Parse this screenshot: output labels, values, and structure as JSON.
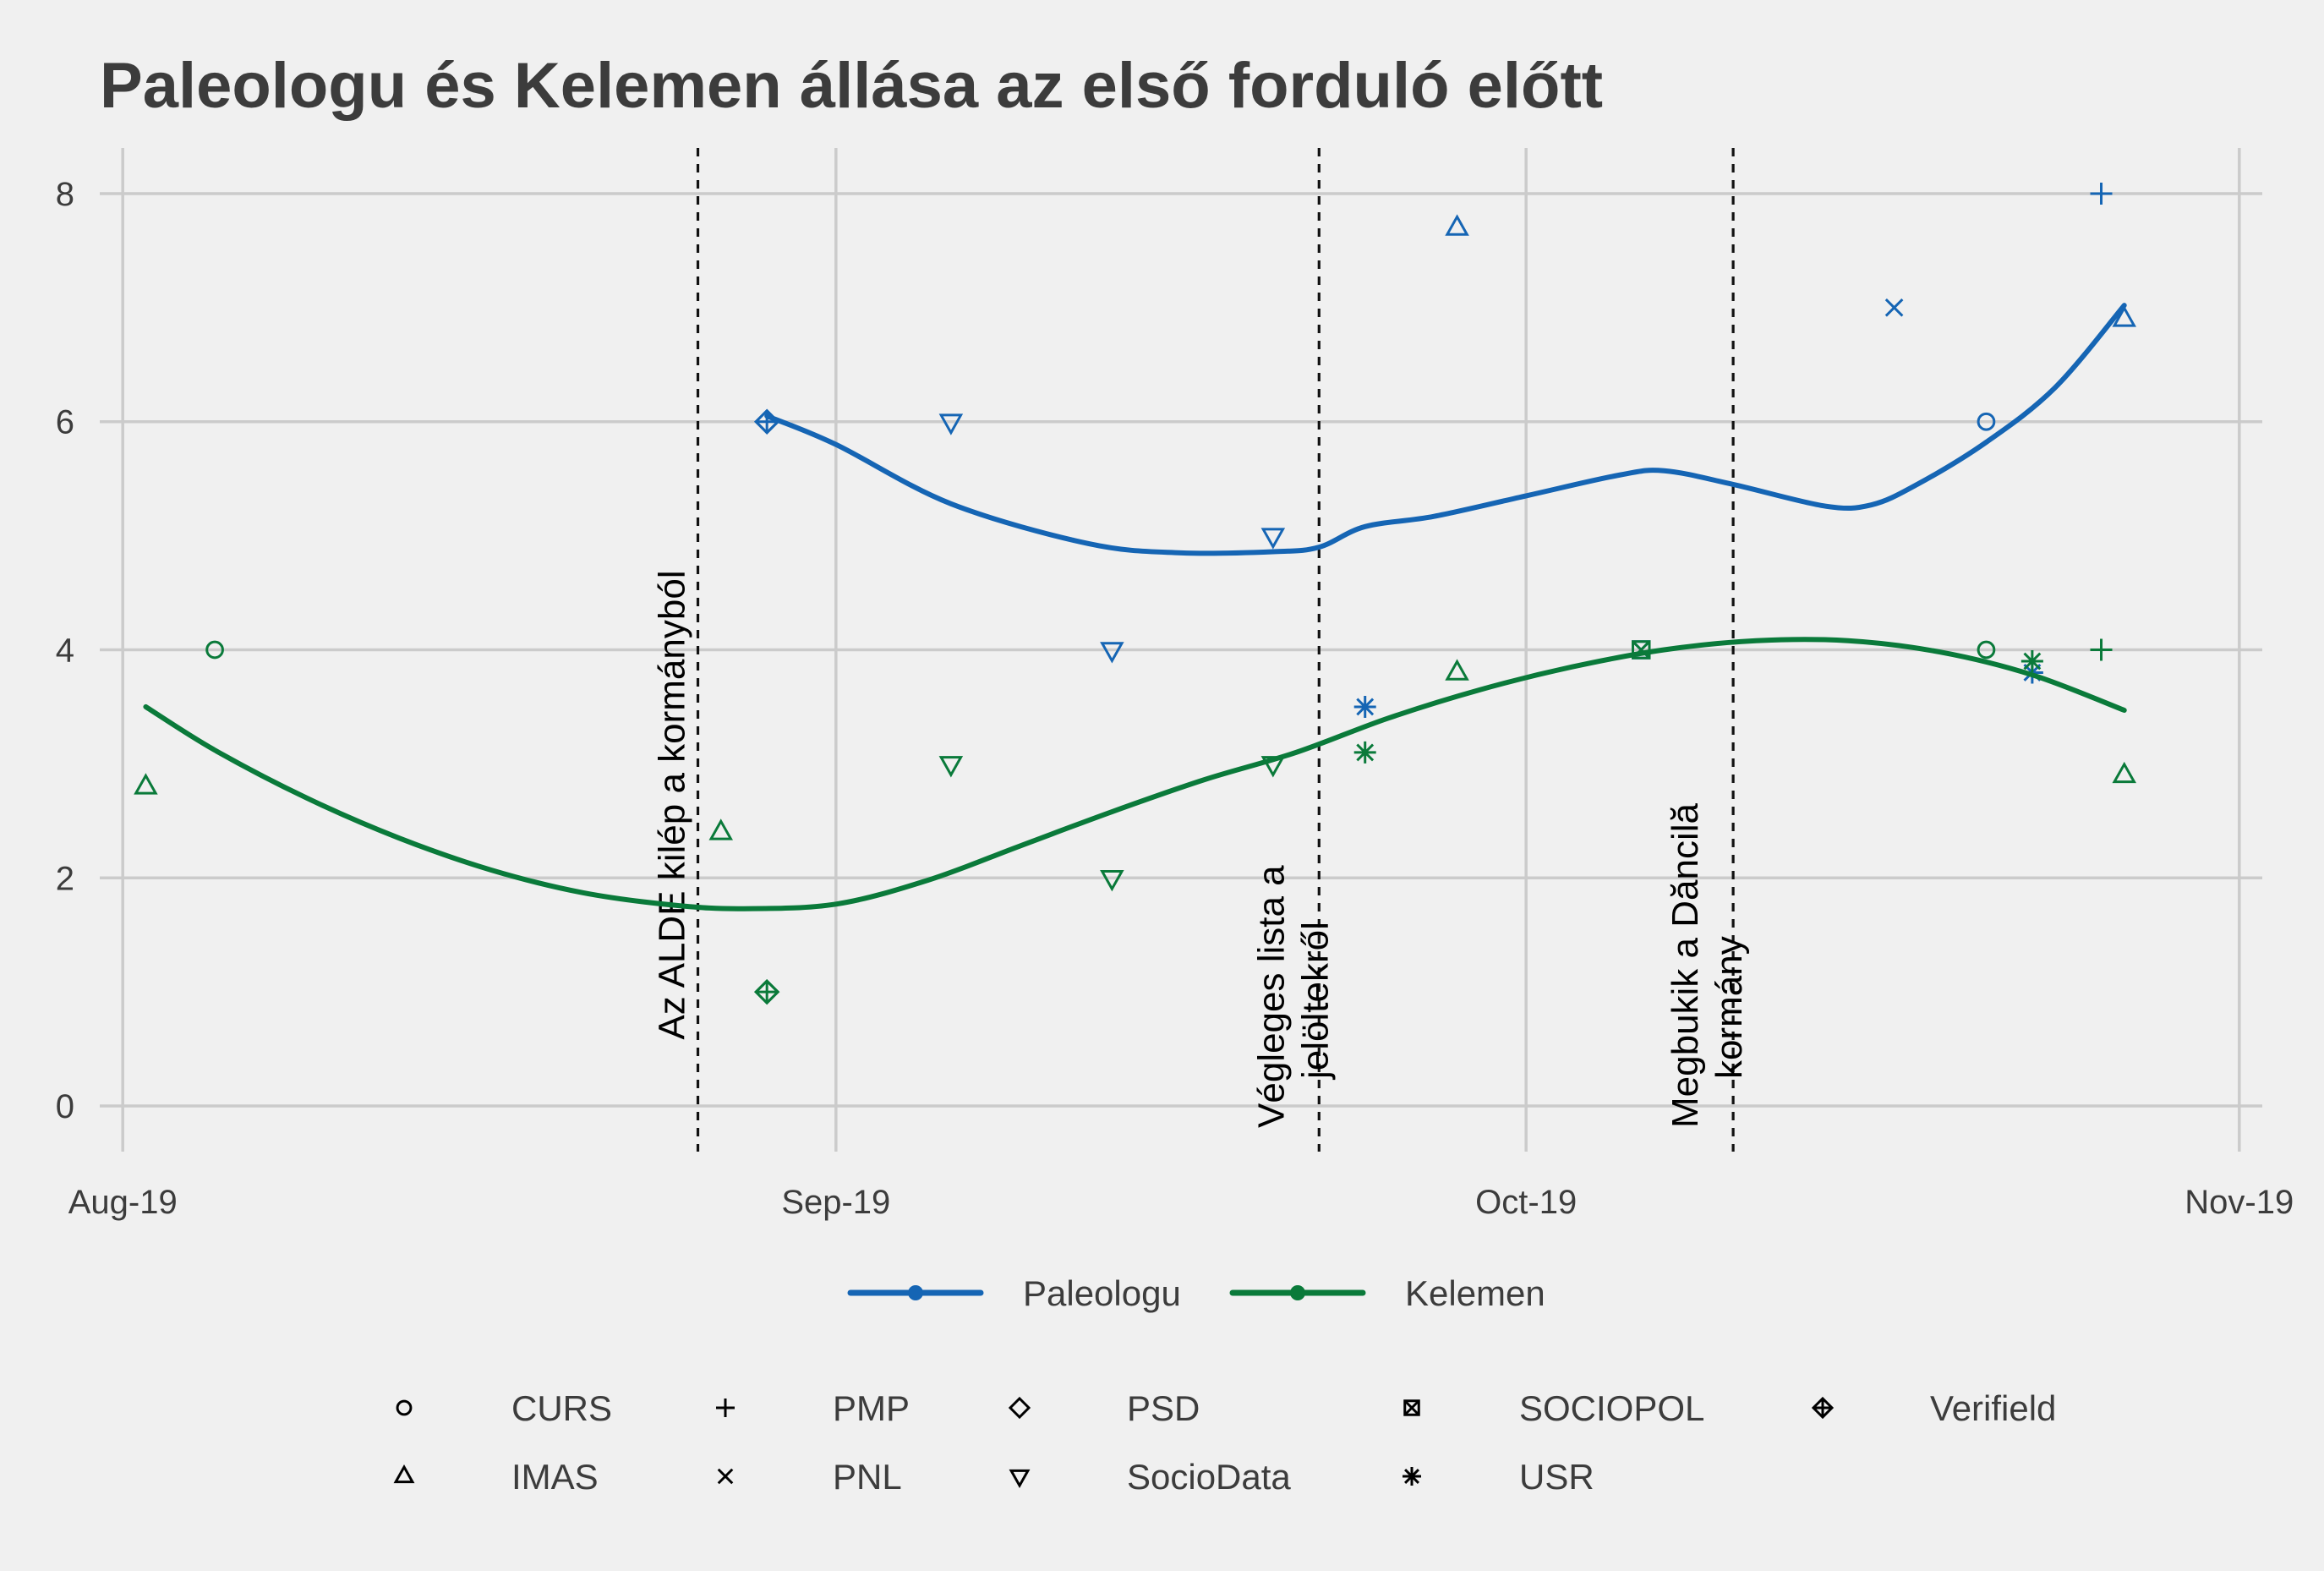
{
  "chart_data": {
    "type": "line",
    "title": "Paleologu és Kelemen állása az első forduló előtt",
    "xlabel": "",
    "ylabel": "",
    "x_axis": {
      "type": "date",
      "range": [
        "2019-07-31",
        "2019-11-02"
      ],
      "ticks": [
        {
          "date": "2019-08-01",
          "label": "Aug-19"
        },
        {
          "date": "2019-09-01",
          "label": "Sep-19"
        },
        {
          "date": "2019-10-01",
          "label": "Oct-19"
        },
        {
          "date": "2019-11-01",
          "label": "Nov-19"
        }
      ]
    },
    "y_axis": {
      "range": [
        -0.4,
        8.4
      ],
      "ticks": [
        0,
        2,
        4,
        6,
        8
      ]
    },
    "grid": true,
    "series": [
      {
        "name": "Paleologu",
        "color": "#1565b4",
        "smooth_line": [
          [
            "2019-08-29",
            6.05
          ],
          [
            "2019-09-01",
            5.8
          ],
          [
            "2019-09-06",
            5.28
          ],
          [
            "2019-09-12",
            4.93
          ],
          [
            "2019-09-16",
            4.85
          ],
          [
            "2019-09-20",
            4.86
          ],
          [
            "2019-09-22",
            4.9
          ],
          [
            "2019-09-24",
            5.08
          ],
          [
            "2019-09-27",
            5.17
          ],
          [
            "2019-10-01",
            5.35
          ],
          [
            "2019-10-05",
            5.53
          ],
          [
            "2019-10-07",
            5.57
          ],
          [
            "2019-10-10",
            5.45
          ],
          [
            "2019-10-14",
            5.26
          ],
          [
            "2019-10-16",
            5.27
          ],
          [
            "2019-10-18",
            5.45
          ],
          [
            "2019-10-21",
            5.82
          ],
          [
            "2019-10-24",
            6.3
          ],
          [
            "2019-10-27",
            7.02
          ]
        ],
        "polls": [
          {
            "date": "2019-08-29",
            "value": 6.0,
            "pollster": "Verifield"
          },
          {
            "date": "2019-08-29",
            "value": 6.0,
            "pollster": "PSD"
          },
          {
            "date": "2019-09-06",
            "value": 6.0,
            "pollster": "SocioData"
          },
          {
            "date": "2019-09-13",
            "value": 4.0,
            "pollster": "SocioData"
          },
          {
            "date": "2019-09-20",
            "value": 5.0,
            "pollster": "SocioData"
          },
          {
            "date": "2019-09-24",
            "value": 3.5,
            "pollster": "USR"
          },
          {
            "date": "2019-09-28",
            "value": 7.7,
            "pollster": "IMAS"
          },
          {
            "date": "2019-10-06",
            "value": 4.0,
            "pollster": "SOCIOPOL"
          },
          {
            "date": "2019-10-17",
            "value": 7.0,
            "pollster": "PNL"
          },
          {
            "date": "2019-10-21",
            "value": 6.0,
            "pollster": "CURS"
          },
          {
            "date": "2019-10-23",
            "value": 3.8,
            "pollster": "USR"
          },
          {
            "date": "2019-10-26",
            "value": 8.0,
            "pollster": "PMP"
          },
          {
            "date": "2019-10-27",
            "value": 6.9,
            "pollster": "IMAS"
          }
        ]
      },
      {
        "name": "Kelemen",
        "color": "#0a7a3a",
        "smooth_line": [
          [
            "2019-08-02",
            3.5
          ],
          [
            "2019-08-05",
            3.12
          ],
          [
            "2019-08-09",
            2.7
          ],
          [
            "2019-08-13",
            2.35
          ],
          [
            "2019-08-17",
            2.07
          ],
          [
            "2019-08-21",
            1.87
          ],
          [
            "2019-08-25",
            1.76
          ],
          [
            "2019-08-28",
            1.73
          ],
          [
            "2019-09-01",
            1.77
          ],
          [
            "2019-09-05",
            1.98
          ],
          [
            "2019-09-09",
            2.28
          ],
          [
            "2019-09-13",
            2.58
          ],
          [
            "2019-09-17",
            2.86
          ],
          [
            "2019-09-21",
            3.1
          ],
          [
            "2019-09-25",
            3.4
          ],
          [
            "2019-09-29",
            3.65
          ],
          [
            "2019-10-03",
            3.85
          ],
          [
            "2019-10-07",
            4.0
          ],
          [
            "2019-10-11",
            4.08
          ],
          [
            "2019-10-15",
            4.08
          ],
          [
            "2019-10-19",
            3.98
          ],
          [
            "2019-10-23",
            3.78
          ],
          [
            "2019-10-27",
            3.47
          ]
        ],
        "polls": [
          {
            "date": "2019-08-02",
            "value": 2.8,
            "pollster": "IMAS"
          },
          {
            "date": "2019-08-05",
            "value": 4.0,
            "pollster": "CURS"
          },
          {
            "date": "2019-08-27",
            "value": 2.4,
            "pollster": "IMAS"
          },
          {
            "date": "2019-08-29",
            "value": 1.0,
            "pollster": "Verifield"
          },
          {
            "date": "2019-08-29",
            "value": 1.0,
            "pollster": "PSD"
          },
          {
            "date": "2019-09-06",
            "value": 3.0,
            "pollster": "SocioData"
          },
          {
            "date": "2019-09-13",
            "value": 2.0,
            "pollster": "SocioData"
          },
          {
            "date": "2019-09-20",
            "value": 3.0,
            "pollster": "SocioData"
          },
          {
            "date": "2019-09-24",
            "value": 3.1,
            "pollster": "USR"
          },
          {
            "date": "2019-09-28",
            "value": 3.8,
            "pollster": "IMAS"
          },
          {
            "date": "2019-10-06",
            "value": 4.0,
            "pollster": "SOCIOPOL"
          },
          {
            "date": "2019-10-21",
            "value": 4.0,
            "pollster": "CURS"
          },
          {
            "date": "2019-10-23",
            "value": 3.9,
            "pollster": "USR"
          },
          {
            "date": "2019-10-26",
            "value": 4.0,
            "pollster": "PMP"
          },
          {
            "date": "2019-10-27",
            "value": 2.9,
            "pollster": "IMAS"
          }
        ]
      }
    ],
    "events": [
      {
        "date": "2019-08-26",
        "lines": [
          "Az ALDE kilép a kormányból"
        ]
      },
      {
        "date": "2019-09-22",
        "lines": [
          "Végleges lista a",
          "jelöltekről"
        ]
      },
      {
        "date": "2019-10-10",
        "lines": [
          "Megbukik a Dăncilă",
          "kormány"
        ]
      }
    ],
    "legend": {
      "placement": "bottom",
      "series": [
        {
          "label": "Paleologu",
          "color": "#1565b4"
        },
        {
          "label": "Kelemen",
          "color": "#0a7a3a"
        }
      ],
      "pollsters": [
        {
          "label": "CURS",
          "shape": "circle"
        },
        {
          "label": "PMP",
          "shape": "plus"
        },
        {
          "label": "PSD",
          "shape": "diamond"
        },
        {
          "label": "SOCIOPOL",
          "shape": "square-x"
        },
        {
          "label": "Verifield",
          "shape": "diamond-plus"
        },
        {
          "label": "IMAS",
          "shape": "triangle-up"
        },
        {
          "label": "PNL",
          "shape": "cross"
        },
        {
          "label": "SocioData",
          "shape": "triangle-down"
        },
        {
          "label": "USR",
          "shape": "asterisk"
        }
      ]
    }
  }
}
